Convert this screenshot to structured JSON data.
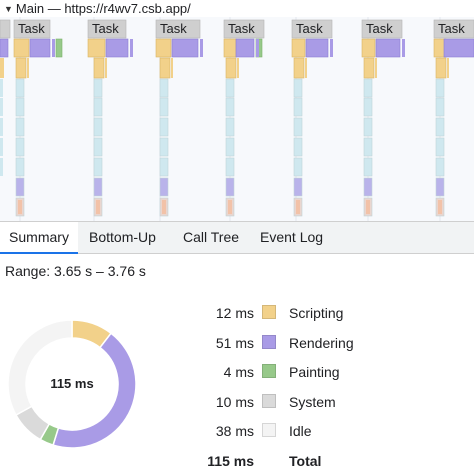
{
  "flame": {
    "track_title": "Main — https://r4wv7.csb.app/",
    "task_label": "Task"
  },
  "tabs": {
    "summary": "Summary",
    "bottom_up": "Bottom-Up",
    "call_tree": "Call Tree",
    "event_log": "Event Log"
  },
  "summary": {
    "range_label": "Range: 3.65 s – 3.76 s",
    "total_center": "115 ms",
    "categories": [
      {
        "name": "Scripting",
        "value": "12 ms",
        "ms": 12,
        "color": "#f2d18a"
      },
      {
        "name": "Rendering",
        "value": "51 ms",
        "ms": 51,
        "color": "#a99be6"
      },
      {
        "name": "Painting",
        "value": "4 ms",
        "ms": 4,
        "color": "#97c98a"
      },
      {
        "name": "System",
        "value": "10 ms",
        "ms": 10,
        "color": "#dadada"
      },
      {
        "name": "Idle",
        "value": "38 ms",
        "ms": 38,
        "color": "#f4f4f4"
      }
    ],
    "total": {
      "value": "115 ms",
      "name": "Total"
    }
  }
}
